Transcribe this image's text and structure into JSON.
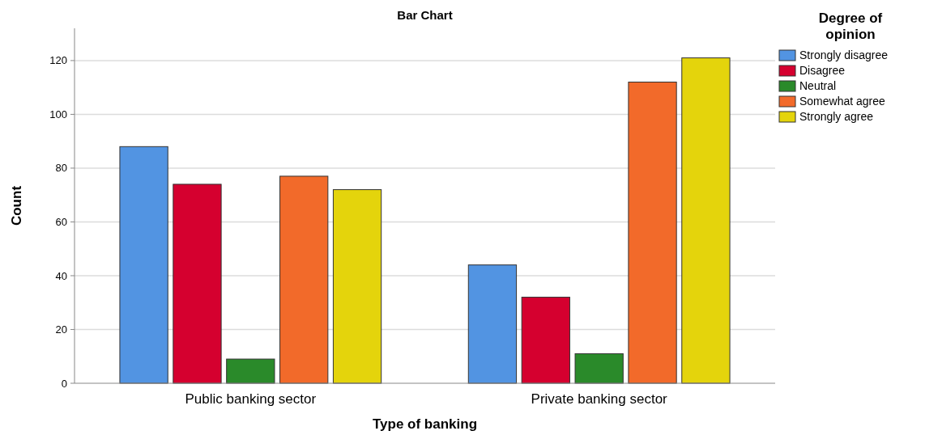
{
  "chart_data": {
    "type": "bar",
    "title": "Bar Chart",
    "xlabel": "Type of banking",
    "ylabel": "Count",
    "legend_title": "Degree of opinion",
    "categories": [
      "Public banking sector",
      "Private banking sector"
    ],
    "series": [
      {
        "name": "Strongly disagree",
        "color": "#5294e2",
        "values": [
          88,
          44
        ]
      },
      {
        "name": "Disagree",
        "color": "#d5002f",
        "values": [
          74,
          32
        ]
      },
      {
        "name": "Neutral",
        "color": "#2a8a2a",
        "values": [
          9,
          11
        ]
      },
      {
        "name": "Somewhat agree",
        "color": "#f26a2a",
        "values": [
          77,
          112
        ]
      },
      {
        "name": "Strongly agree",
        "color": "#e4d40c",
        "values": [
          72,
          121
        ]
      }
    ],
    "ylim": [
      0,
      132
    ],
    "yticks": [
      0,
      20,
      40,
      60,
      80,
      100,
      120
    ],
    "grid": "y",
    "legend": "right"
  }
}
